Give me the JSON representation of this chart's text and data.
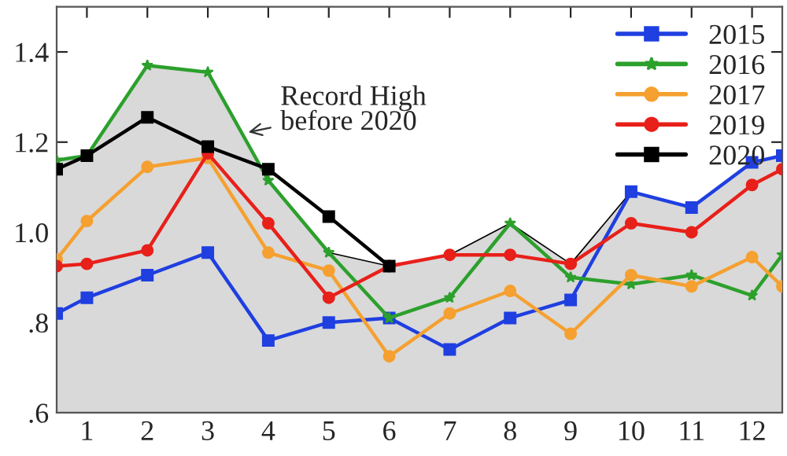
{
  "chart_data": {
    "type": "line",
    "xlim": [
      0.5,
      12.5
    ],
    "ylim": [
      0.6,
      1.5
    ],
    "xticks": [
      1,
      2,
      3,
      4,
      5,
      6,
      7,
      8,
      9,
      10,
      11,
      12
    ],
    "yticks": [
      {
        "value": 0.6,
        "label": ".6"
      },
      {
        "value": 0.8,
        "label": ".8"
      },
      {
        "value": 1.0,
        "label": "1.0"
      },
      {
        "value": 1.2,
        "label": "1.2"
      },
      {
        "value": 1.4,
        "label": "1.4"
      }
    ],
    "grid": false,
    "legend": "top right",
    "annotations": [
      {
        "text": "Record High\nbefore 2020",
        "x": 3.6,
        "y": 1.22
      }
    ],
    "series": [
      {
        "type": "area",
        "color": "#d9d9d9",
        "marker": "none",
        "x": [
          0.5,
          1,
          2,
          3,
          4,
          5,
          6,
          7,
          8,
          9,
          10,
          11,
          12,
          12.5
        ],
        "values": [
          1.16,
          1.17,
          1.37,
          1.355,
          1.115,
          0.955,
          0.925,
          0.95,
          1.02,
          0.93,
          1.09,
          1.055,
          1.155,
          1.17
        ]
      },
      {
        "name": "2015",
        "color": "#1f3fe0",
        "marker": "square",
        "x": [
          0.5,
          1,
          2,
          3,
          4,
          5,
          6,
          7,
          8,
          9,
          10,
          11,
          12,
          12.5
        ],
        "values": [
          0.82,
          0.855,
          0.905,
          0.955,
          0.76,
          0.8,
          0.81,
          0.74,
          0.81,
          0.85,
          1.09,
          1.055,
          1.155,
          1.17
        ]
      },
      {
        "name": "2016",
        "color": "#2ca02c",
        "marker": "star",
        "x": [
          0.5,
          1,
          2,
          3,
          4,
          5,
          6,
          7,
          8,
          9,
          10,
          11,
          12,
          12.5
        ],
        "values": [
          1.16,
          1.17,
          1.37,
          1.355,
          1.115,
          0.955,
          0.81,
          0.855,
          1.02,
          0.9,
          0.885,
          0.905,
          0.86,
          0.95
        ]
      },
      {
        "name": "2017",
        "color": "#f5a030",
        "marker": "circle",
        "x": [
          0.5,
          1,
          2,
          3,
          4,
          5,
          6,
          7,
          8,
          9,
          10,
          11,
          12,
          12.5
        ],
        "values": [
          0.94,
          1.025,
          1.145,
          1.165,
          0.955,
          0.915,
          0.725,
          0.82,
          0.87,
          0.775,
          0.905,
          0.88,
          0.945,
          0.88
        ]
      },
      {
        "name": "2019",
        "color": "#e8201a",
        "marker": "circle",
        "x": [
          0.5,
          1,
          2,
          3,
          4,
          5,
          6,
          7,
          8,
          9,
          10,
          11,
          12,
          12.5
        ],
        "values": [
          0.925,
          0.93,
          0.96,
          1.175,
          1.02,
          0.855,
          0.925,
          0.95,
          0.95,
          0.93,
          1.02,
          1.0,
          1.105,
          1.14
        ]
      },
      {
        "name": "2020",
        "color": "#000000",
        "marker": "square",
        "x": [
          0.5,
          1,
          2,
          3,
          4,
          5,
          6
        ],
        "values": [
          1.14,
          1.17,
          1.255,
          1.19,
          1.14,
          1.035,
          0.925
        ]
      }
    ]
  }
}
